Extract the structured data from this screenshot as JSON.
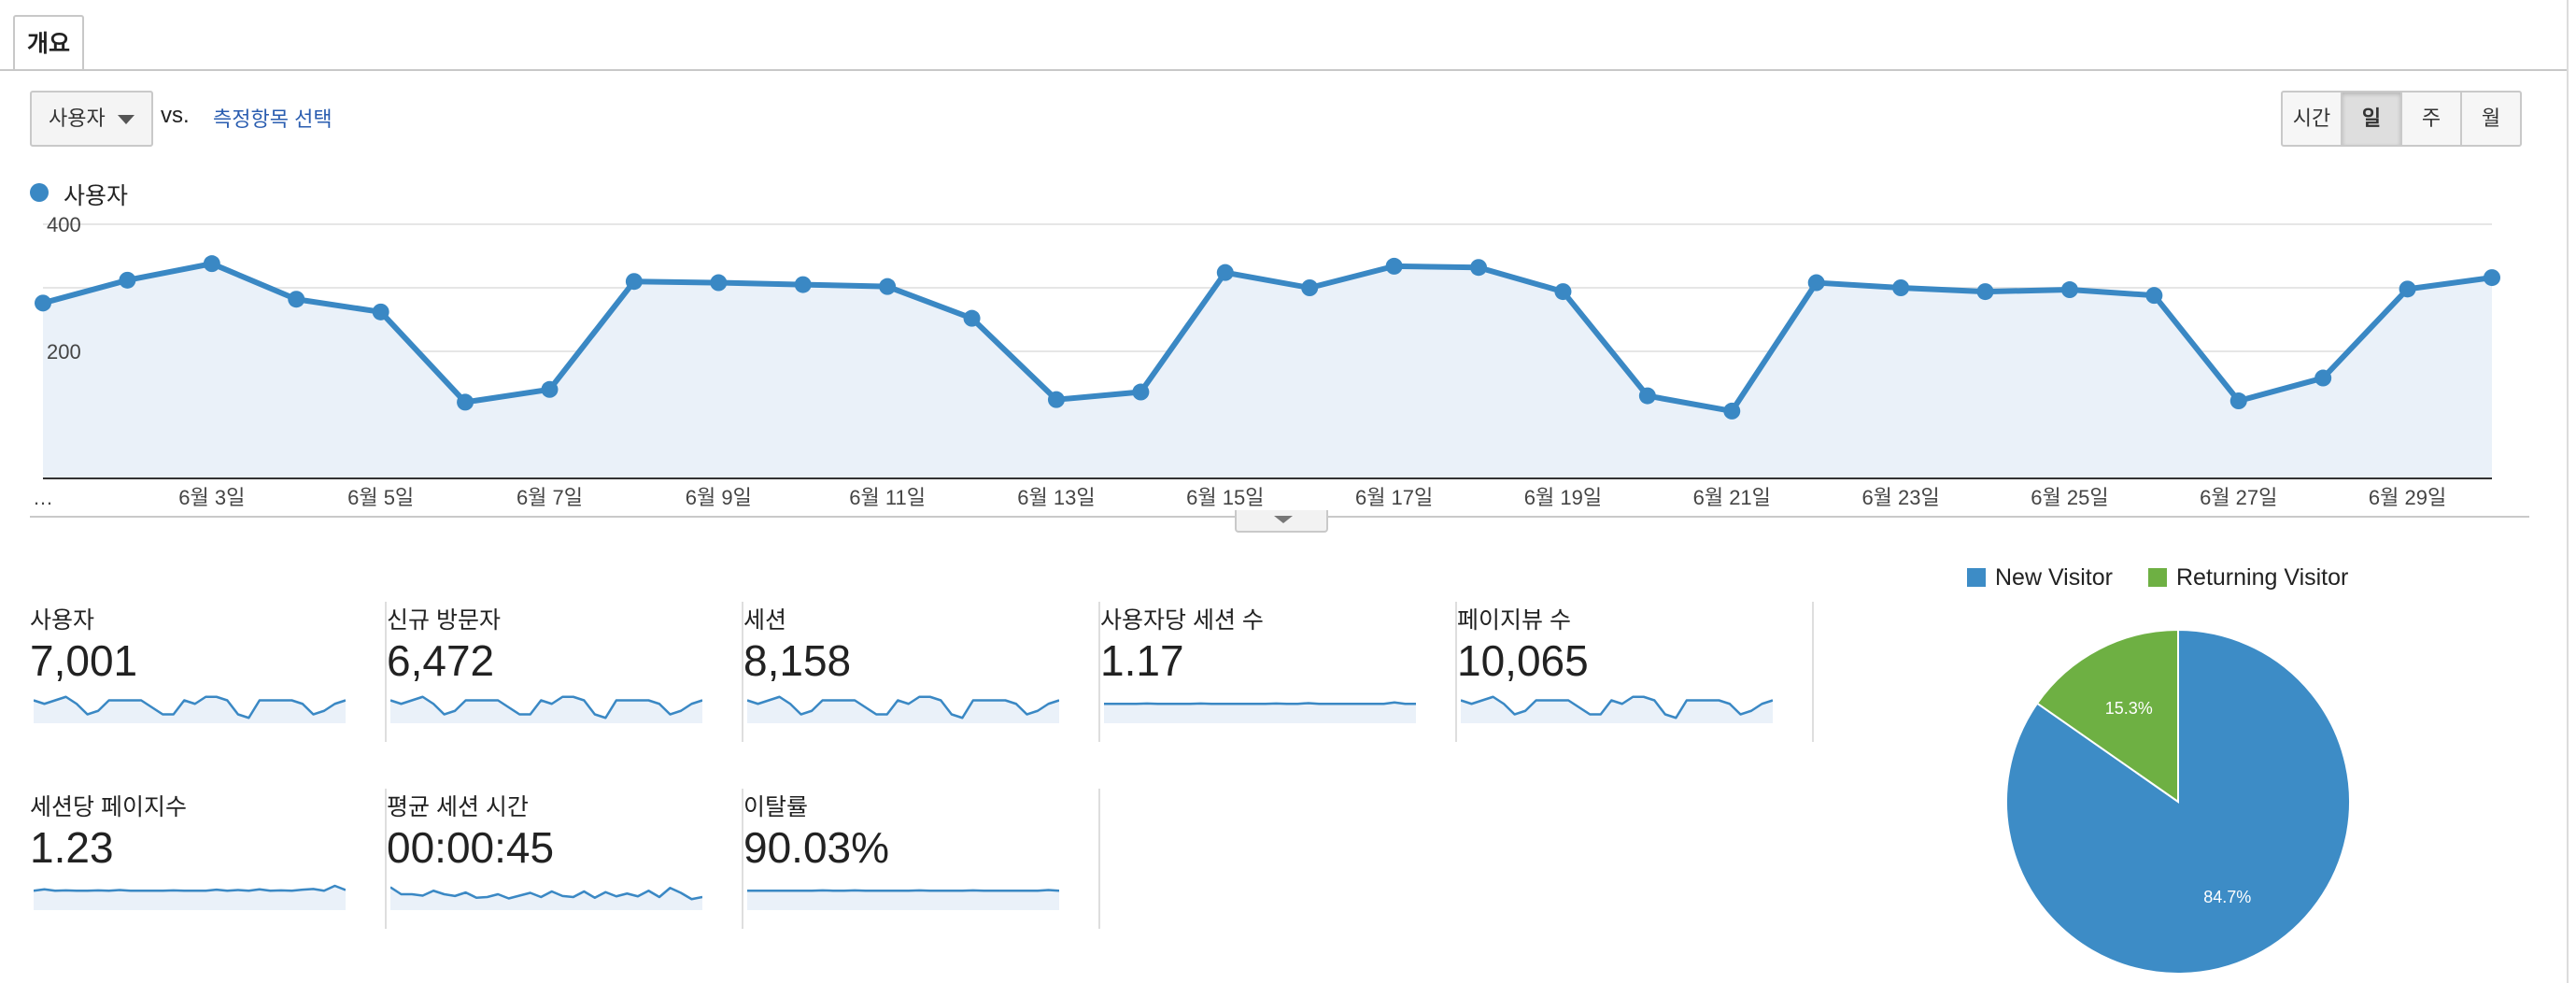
{
  "tabs": [
    {
      "label": "개요"
    }
  ],
  "toolbar": {
    "metric_select": {
      "value": "사용자"
    },
    "vs_label": "vs.",
    "pick_metric_link": "측정항목 선택",
    "period_buttons": [
      {
        "label": "시간",
        "active": false
      },
      {
        "label": "일",
        "active": true
      },
      {
        "label": "주",
        "active": false
      },
      {
        "label": "월",
        "active": false
      }
    ]
  },
  "colors": {
    "series": "#3a88c4",
    "area_fill": "#eaf1f9",
    "new_visitor": "#3d8cc6",
    "returning_visitor": "#6eb043",
    "link": "#2a5db0"
  },
  "chart_data": [
    {
      "type": "line",
      "series": [
        {
          "name": "사용자",
          "values": [
            276,
            312,
            338,
            282,
            262,
            120,
            140,
            310,
            308,
            305,
            302,
            252,
            124,
            136,
            324,
            300,
            334,
            332,
            294,
            130,
            106,
            308,
            300,
            294,
            297,
            288,
            122,
            158,
            298,
            316
          ]
        }
      ],
      "x_tick_labels": [
        "…",
        "6월 3일",
        "6월 5일",
        "6월 7일",
        "6월 9일",
        "6월 11일",
        "6월 13일",
        "6월 15일",
        "6월 17일",
        "6월 19일",
        "6월 21일",
        "6월 23일",
        "6월 25일",
        "6월 27일",
        "6월 29일"
      ],
      "y_tick_labels": [
        "400",
        "200"
      ],
      "ylim": [
        0,
        400
      ],
      "grid": true,
      "area_fill": true
    },
    {
      "type": "pie",
      "categories": [
        "New Visitor",
        "Returning Visitor"
      ],
      "values": [
        84.7,
        15.3
      ],
      "labels": [
        "84.7%",
        "15.3%"
      ],
      "legend": "top"
    }
  ],
  "summary_cards": [
    {
      "label": "사용자",
      "value": "7,001",
      "sparkline": [
        6,
        5,
        6,
        7,
        5,
        2,
        3,
        6,
        6,
        6,
        6,
        4,
        2,
        2,
        6,
        5,
        7,
        7,
        6,
        2,
        1,
        6,
        6,
        6,
        6,
        5,
        2,
        3,
        5,
        6
      ]
    },
    {
      "label": "신규 방문자",
      "value": "6,472",
      "sparkline": [
        6,
        5,
        6,
        7,
        5,
        2,
        3,
        6,
        6,
        6,
        6,
        4,
        2,
        2,
        6,
        5,
        7,
        7,
        6,
        2,
        1,
        6,
        6,
        6,
        6,
        5,
        2,
        3,
        5,
        6
      ]
    },
    {
      "label": "세션",
      "value": "8,158",
      "sparkline": [
        6,
        5,
        6,
        7,
        5,
        2,
        3,
        6,
        6,
        6,
        6,
        4,
        2,
        2,
        6,
        5,
        7,
        7,
        6,
        2,
        1,
        6,
        6,
        6,
        6,
        5,
        2,
        3,
        5,
        6
      ]
    },
    {
      "label": "사용자당 세션 수",
      "value": "1.17",
      "sparkline": [
        5,
        5,
        5,
        5,
        5.1,
        5,
        5,
        5,
        5,
        5.1,
        5,
        5,
        5,
        5,
        5,
        5,
        5.1,
        5,
        5,
        5.2,
        5,
        5,
        5,
        5,
        5,
        5,
        5,
        5.4,
        5,
        5
      ]
    },
    {
      "label": "페이지뷰 수",
      "value": "10,065",
      "sparkline": [
        6,
        5,
        6,
        7,
        5,
        2,
        3,
        6,
        6,
        6,
        6,
        4,
        2,
        2,
        6,
        5,
        7,
        7,
        6,
        2,
        1,
        6,
        6,
        6,
        6,
        5,
        2,
        3,
        5,
        6
      ]
    },
    {
      "label": "세션당 페이지수",
      "value": "1.23",
      "sparkline": [
        5,
        5.4,
        5,
        5.1,
        5,
        5,
        5.1,
        5,
        5.2,
        5,
        5,
        5,
        5,
        5.1,
        5,
        5,
        5,
        5.3,
        5,
        5.2,
        5,
        5.4,
        5,
        5.1,
        5,
        5.3,
        5.5,
        5,
        6.4,
        5.2
      ]
    },
    {
      "label": "평균 세션 시간",
      "value": "00:00:45",
      "sparkline": [
        6,
        4,
        4,
        3.6,
        5,
        4,
        3.5,
        4.5,
        3,
        3.2,
        4,
        2.8,
        3.6,
        4.4,
        3.2,
        4.8,
        3.5,
        3.2,
        4.8,
        3,
        4.6,
        3.4,
        4.2,
        3.4,
        5,
        3.2,
        5.8,
        4.4,
        2.6,
        3.2
      ]
    },
    {
      "label": "이탈률",
      "value": "90.03%",
      "sparkline": [
        5,
        5,
        5,
        5,
        5,
        5,
        5,
        5.1,
        5,
        5,
        5.1,
        5,
        5,
        5,
        5,
        5,
        5.1,
        5,
        5,
        5,
        5,
        5.1,
        5,
        5,
        5,
        5,
        5,
        5,
        5.2,
        5
      ]
    }
  ]
}
